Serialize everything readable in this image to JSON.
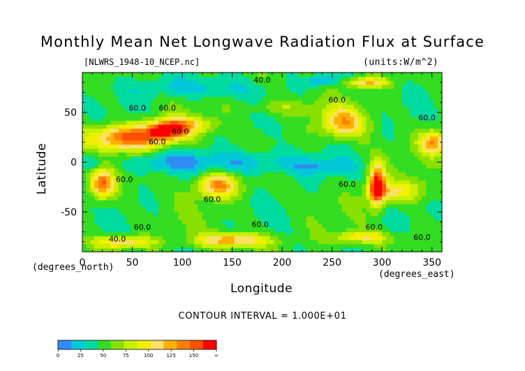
{
  "title": "Monthly Mean Net Longwave Radiation Flux at Surface",
  "subtitle_left": "[NLWRS_1948-10_NCEP.nc]",
  "subtitle_right": "(units:W/m^2)",
  "y_unit_label": "(degrees_north)",
  "x_unit_label": "(degrees_east)",
  "contour_interval_text": "CONTOUR INTERVAL = 1.000E+01",
  "chart_data": {
    "type": "heatmap",
    "title": "Monthly Mean Net Longwave Radiation Flux at Surface",
    "xlabel": "Longitude",
    "ylabel": "Latitude",
    "xlim": [
      0,
      360
    ],
    "ylim": [
      -90,
      90
    ],
    "x_ticks": [
      0,
      50,
      100,
      150,
      200,
      250,
      300,
      350
    ],
    "y_ticks": [
      -50,
      0,
      50
    ],
    "contour_labels": [
      {
        "lon": 85,
        "lat": 52,
        "text": "60.0"
      },
      {
        "lon": 55,
        "lat": 52,
        "text": "60.0"
      },
      {
        "lon": 75,
        "lat": 18,
        "text": "60.0"
      },
      {
        "lon": 98,
        "lat": 28,
        "text": "60.0"
      },
      {
        "lon": 255,
        "lat": 60,
        "text": "60.0"
      },
      {
        "lon": 345,
        "lat": 42,
        "text": "60.0"
      },
      {
        "lon": 42,
        "lat": -20,
        "text": "60.0"
      },
      {
        "lon": 130,
        "lat": -40,
        "text": "60.0"
      },
      {
        "lon": 265,
        "lat": -25,
        "text": "60.0"
      },
      {
        "lon": 178,
        "lat": -65,
        "text": "60.0"
      },
      {
        "lon": 292,
        "lat": -68,
        "text": "60.0"
      },
      {
        "lon": 340,
        "lat": -78,
        "text": "60.0"
      },
      {
        "lon": 60,
        "lat": -68,
        "text": "60.0"
      },
      {
        "lon": 35,
        "lat": -80,
        "text": "40.0"
      },
      {
        "lon": 180,
        "lat": 80,
        "text": "40.0"
      }
    ],
    "colorbar": {
      "ticks": [
        "0",
        "25",
        "50",
        "75",
        "100",
        "125",
        "150",
        "∞"
      ],
      "colors": [
        "#2f8cf5",
        "#00c8d8",
        "#00dca0",
        "#33dd22",
        "#88e000",
        "#c8f000",
        "#f0f000",
        "#ffe066",
        "#ffb000",
        "#ff8000",
        "#ff5000",
        "#ff0000"
      ]
    },
    "field_blobs": [
      {
        "lon": 45,
        "lat": 25,
        "rlon": 40,
        "rlat": 12,
        "amp": 85
      },
      {
        "lon": 85,
        "lat": 33,
        "rlon": 22,
        "rlat": 10,
        "amp": 95
      },
      {
        "lon": 110,
        "lat": 38,
        "rlon": 25,
        "rlat": 8,
        "amp": 35
      },
      {
        "lon": 20,
        "lat": -22,
        "rlon": 12,
        "rlat": 14,
        "amp": 80
      },
      {
        "lon": 135,
        "lat": -23,
        "rlon": 20,
        "rlat": 12,
        "amp": 75
      },
      {
        "lon": 262,
        "lat": 40,
        "rlon": 22,
        "rlat": 14,
        "amp": 65
      },
      {
        "lon": 295,
        "lat": -23,
        "rlon": 8,
        "rlat": 20,
        "amp": 110
      },
      {
        "lon": 305,
        "lat": -30,
        "rlon": 20,
        "rlat": 10,
        "amp": 40
      },
      {
        "lon": 352,
        "lat": 20,
        "rlon": 14,
        "rlat": 12,
        "amp": 70
      },
      {
        "lon": 150,
        "lat": -78,
        "rlon": 35,
        "rlat": 7,
        "amp": 70
      },
      {
        "lon": 40,
        "lat": -80,
        "rlon": 30,
        "rlat": 6,
        "amp": 55
      },
      {
        "lon": 280,
        "lat": -75,
        "rlon": 30,
        "rlat": 6,
        "amp": 45
      },
      {
        "lon": 285,
        "lat": 80,
        "rlon": 20,
        "rlat": 5,
        "amp": 60
      },
      {
        "lon": 330,
        "lat": -28,
        "rlon": 20,
        "rlat": 12,
        "amp": 25
      },
      {
        "lon": 200,
        "lat": 55,
        "rlon": 40,
        "rlat": 8,
        "amp": 20
      },
      {
        "lon": 170,
        "lat": 0,
        "rlon": 60,
        "rlat": 12,
        "amp": -30
      },
      {
        "lon": 80,
        "lat": 0,
        "rlon": 40,
        "rlat": 10,
        "amp": -25
      },
      {
        "lon": 110,
        "lat": 75,
        "rlon": 60,
        "rlat": 10,
        "amp": -25
      },
      {
        "lon": 240,
        "lat": 82,
        "rlon": 15,
        "rlat": 5,
        "amp": -40
      },
      {
        "lon": 10,
        "lat": 0,
        "rlon": 10,
        "rlat": 8,
        "amp": -25
      },
      {
        "lon": 240,
        "lat": -5,
        "rlon": 30,
        "rlat": 8,
        "amp": -20
      }
    ]
  }
}
